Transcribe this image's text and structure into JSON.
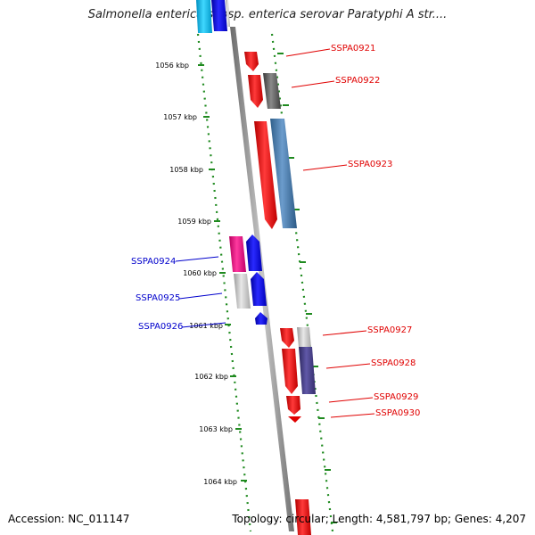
{
  "title": "Salmonella enterica subsp. enterica serovar Paratyphi A str....",
  "accession": "Accession: NC_011147",
  "summary": "Topology: circular; Length: 4,581,797 bp; Genes: 4,207",
  "colors": {
    "ruler_tick": "#1f8a1f",
    "backbone": "#8c8c8c",
    "forward_label": "#e00000",
    "reverse_label": "#0000cc"
  },
  "ruler_labels": [
    "1056 kbp",
    "1057 kbp",
    "1058 kbp",
    "1059 kbp",
    "1060 kbp",
    "1061 kbp",
    "1062 kbp",
    "1063 kbp",
    "1064 kbp"
  ],
  "forward_genes": [
    {
      "name": "SSPA0921",
      "color": "red"
    },
    {
      "name": "SSPA0922",
      "color": "red"
    },
    {
      "name": "SSPA0923",
      "color": "red"
    },
    {
      "name": "SSPA0927",
      "color": "red"
    },
    {
      "name": "SSPA0928",
      "color": "red"
    },
    {
      "name": "SSPA0929",
      "color": "red"
    },
    {
      "name": "SSPA0930",
      "color": "red"
    }
  ],
  "reverse_genes": [
    {
      "name": "SSPA0924",
      "color": "blue"
    },
    {
      "name": "SSPA0925",
      "color": "blue"
    },
    {
      "name": "SSPA0926",
      "color": "blue"
    }
  ]
}
